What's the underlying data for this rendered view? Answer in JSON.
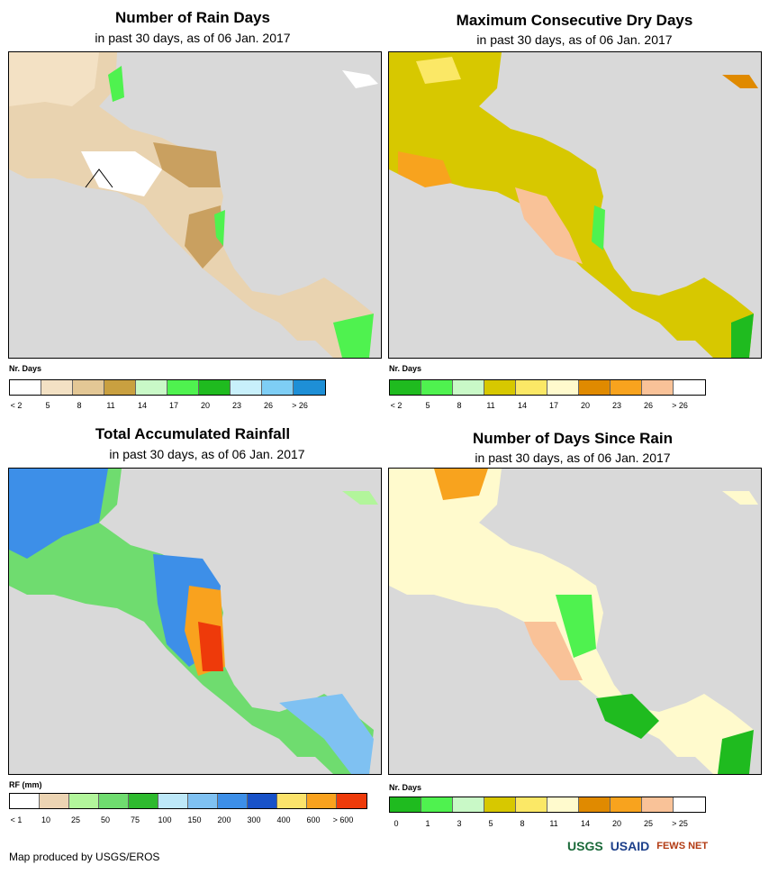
{
  "panels": [
    {
      "id": "rain-days",
      "title": "Number of Rain Days",
      "subtitle": "in past 30 days, as of 06 Jan. 2017",
      "legend_title": "Nr. Days",
      "legend_colors": [
        "#ffffff",
        "#f3e1c4",
        "#e3c795",
        "#c9a040",
        "#c9f9c7",
        "#4ff24f",
        "#1fbb1f",
        "#c8f0fb",
        "#7ecef5",
        "#1e8fd6"
      ],
      "legend_ticks": [
        "< 2",
        "5",
        "8",
        "11",
        "14",
        "17",
        "20",
        "23",
        "26",
        "> 26"
      ]
    },
    {
      "id": "max-dry-days",
      "title": "Maximum Consecutive Dry Days",
      "subtitle": "in past 30 days, as of 06 Jan. 2017",
      "legend_title": "Nr. Days",
      "legend_colors": [
        "#1fbb1f",
        "#4ff24f",
        "#c9f9c7",
        "#d7c800",
        "#fbe866",
        "#fffacd",
        "#e08a00",
        "#f8a31e",
        "#f9c298",
        "#ffffff"
      ],
      "legend_ticks": [
        "< 2",
        "5",
        "8",
        "11",
        "14",
        "17",
        "20",
        "23",
        "26",
        "> 26"
      ]
    },
    {
      "id": "total-rainfall",
      "title": "Total Accumulated Rainfall",
      "subtitle": "in past 30 days, as of 06 Jan. 2017",
      "legend_title": "RF (mm)",
      "legend_colors": [
        "#ffffff",
        "#ecd4b3",
        "#b2f59b",
        "#6fdc6f",
        "#2eba2e",
        "#bde8f8",
        "#7fc1f2",
        "#3d8fe8",
        "#1852c8",
        "#fbe36b",
        "#f9a21e",
        "#ee3a0a"
      ],
      "legend_ticks": [
        "< 1",
        "10",
        "25",
        "50",
        "75",
        "100",
        "150",
        "200",
        "300",
        "400",
        "600",
        "> 600"
      ]
    },
    {
      "id": "days-since-rain",
      "title": "Number of Days Since Rain",
      "subtitle": "in past 30 days, as of 06 Jan. 2017",
      "legend_title": "Nr. Days",
      "legend_colors": [
        "#1fbb1f",
        "#4ff24f",
        "#c9f9c7",
        "#d7c800",
        "#fbe866",
        "#fffacd",
        "#e08a00",
        "#f8a31e",
        "#f9c298",
        "#ffffff"
      ],
      "legend_ticks": [
        "0",
        "1",
        "3",
        "5",
        "8",
        "11",
        "14",
        "20",
        "25",
        "> 25"
      ]
    }
  ],
  "footer": "Map produced by USGS/EROS",
  "logos": [
    "USGS",
    "USAID",
    "FEWS NET"
  ]
}
